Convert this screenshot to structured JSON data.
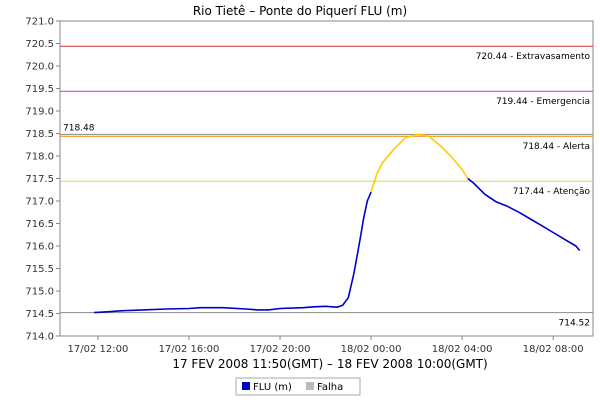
{
  "chart_data": {
    "type": "line",
    "title": "Rio Tietê – Ponte do Piquerí FLU (m)",
    "subtitle": "17 FEV 2008 11:50(GMT) – 18 FEV 2008 10:00(GMT)",
    "ylim": [
      714.0,
      721.0
    ],
    "y_ticks": [
      714.0,
      714.5,
      715.0,
      715.5,
      716.0,
      716.5,
      717.0,
      717.5,
      718.0,
      718.5,
      719.0,
      719.5,
      720.0,
      720.5,
      721.0
    ],
    "y_tick_labels": [
      "714.0",
      "714.5",
      "715.0",
      "715.5",
      "716.0",
      "716.5",
      "717.0",
      "717.5",
      "718.0",
      "718.5",
      "719.0",
      "719.5",
      "720.0",
      "720.5",
      "721.0"
    ],
    "xlim": [
      "17/02 10:20",
      "18/02 09:45"
    ],
    "x_ticks": [
      "17/02 12:00",
      "17/02 16:00",
      "17/02 20:00",
      "18/02 00:00",
      "18/02 04:00",
      "18/02 08:00"
    ],
    "grid": false,
    "legend_position": "bottom",
    "reference_lines": [
      {
        "value": 720.44,
        "label": "720.44 - Extravasamento",
        "color": "#cc3333"
      },
      {
        "value": 719.44,
        "label": "719.44 - Emergencia",
        "color": "#cc33cc"
      },
      {
        "value": 718.44,
        "label": "718.44 - Alerta",
        "color": "#ee8800"
      },
      {
        "value": 717.44,
        "label": "717.44 - Atenção",
        "color": "#dddd33"
      },
      {
        "value": 718.48,
        "label": "718.48",
        "color": "#888888",
        "label_side": "left"
      },
      {
        "value": 714.52,
        "label": "714.52",
        "color": "#888888"
      }
    ],
    "series": [
      {
        "name": "FLU (m)",
        "color": "#0000cc",
        "x": [
          "17/02 11:50",
          "17/02 12:30",
          "17/02 13:00",
          "17/02 14:00",
          "17/02 15:00",
          "17/02 16:00",
          "17/02 16:30",
          "17/02 17:30",
          "17/02 18:30",
          "17/02 19:00",
          "17/02 19:30",
          "17/02 20:00",
          "17/02 21:00",
          "17/02 21:30",
          "17/02 22:00",
          "17/02 22:30",
          "17/02 22:45",
          "17/02 23:00",
          "17/02 23:15",
          "17/02 23:30",
          "17/02 23:40",
          "17/02 23:50",
          "18/02 00:00"
        ],
        "values": [
          714.52,
          714.54,
          714.56,
          714.58,
          714.6,
          714.61,
          714.63,
          714.63,
          714.6,
          714.58,
          714.58,
          714.61,
          714.63,
          714.65,
          714.66,
          714.64,
          714.68,
          714.85,
          715.4,
          716.1,
          716.6,
          717.0,
          717.2
        ]
      },
      {
        "name": "",
        "color": "#ffcc00",
        "x": [
          "18/02 00:00",
          "18/02 00:15",
          "18/02 00:30",
          "18/02 01:00",
          "18/02 01:30",
          "18/02 02:00",
          "18/02 02:30",
          "18/02 03:00",
          "18/02 03:30",
          "18/02 04:00",
          "18/02 04:15"
        ],
        "values": [
          717.2,
          717.6,
          717.85,
          718.15,
          718.4,
          718.48,
          718.45,
          718.25,
          718.0,
          717.7,
          717.5
        ]
      },
      {
        "name": "",
        "color": "#0000cc",
        "x": [
          "18/02 04:15",
          "18/02 04:30",
          "18/02 05:00",
          "18/02 05:30",
          "18/02 06:00",
          "18/02 06:30",
          "18/02 07:00",
          "18/02 07:30",
          "18/02 08:00",
          "18/02 08:30",
          "18/02 09:00",
          "18/02 09:10"
        ],
        "values": [
          717.5,
          717.4,
          717.15,
          716.98,
          716.88,
          716.75,
          716.6,
          716.45,
          716.3,
          716.15,
          716.0,
          715.9
        ]
      }
    ],
    "legend": [
      {
        "label": "FLU (m)",
        "color": "#0000cc"
      },
      {
        "label": "Falha",
        "color": "#bbbbbb"
      }
    ]
  }
}
